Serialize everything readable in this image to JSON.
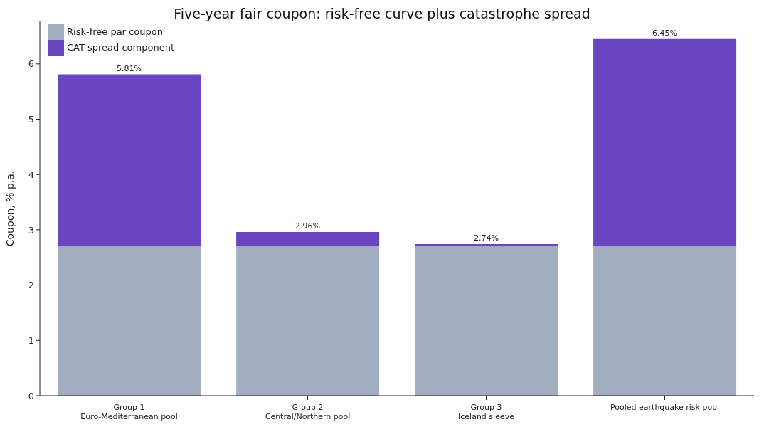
{
  "chart_data": {
    "type": "bar",
    "title": "Five-year fair coupon: risk-free curve plus catastrophe spread",
    "ylabel": "Coupon, % p.a.",
    "categories": [
      "Group 1\nEuro-Mediterranean pool",
      "Group 2\nCentral/Northern pool",
      "Group 3\nIceland sleeve",
      "Pooled earthquake risk pool"
    ],
    "series": [
      {
        "name": "Risk-free par coupon",
        "color": "#a1aebf",
        "values": [
          2.7,
          2.7,
          2.7,
          2.7
        ]
      },
      {
        "name": "CAT spread component",
        "color": "#6a45c0",
        "values": [
          3.11,
          0.26,
          0.04,
          3.75
        ]
      }
    ],
    "stacked": true,
    "totals": [
      "5.81%",
      "2.96%",
      "2.74%",
      "6.45%"
    ],
    "ylim": [
      0,
      6.77
    ],
    "yticks": [
      0,
      1,
      2,
      3,
      4,
      5,
      6
    ],
    "grid": false,
    "legend": "top left"
  }
}
